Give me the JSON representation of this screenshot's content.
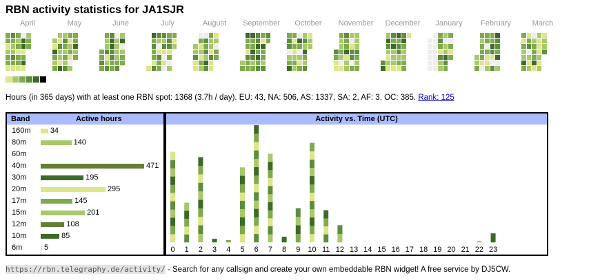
{
  "page": {
    "title": "RBN activity statistics for JA1SJR"
  },
  "calendar": {
    "months": [
      "April",
      "May",
      "June",
      "July",
      "August",
      "September",
      "October",
      "November",
      "December",
      "January",
      "February",
      "March"
    ],
    "legend_colors": [
      "#dde68a",
      "#a8c86a",
      "#7faa4f",
      "#5f8c3e",
      "#3d6a26",
      "#000000"
    ],
    "empty_color": "#eeeeee",
    "highlight_color": "#cc3333"
  },
  "summary": {
    "text": "Hours (in 365 days) with at least one RBN spot: 1368 (3.7h / day). EU: 43, NA: 506, AS: 1337, SA: 2, AF: 3, OC: 385.",
    "rank_label": "Rank: 125"
  },
  "bands": {
    "header_band": "Band",
    "header_hours": "Active hours",
    "rows": [
      {
        "band": "160m",
        "hours": 34,
        "color": "#dde68a"
      },
      {
        "band": "80m",
        "hours": 140,
        "color": "#a8c86a"
      },
      {
        "band": "60m",
        "hours": 0,
        "color": "#cccccc"
      },
      {
        "band": "40m",
        "hours": 471,
        "color": "#667f37"
      },
      {
        "band": "30m",
        "hours": 195,
        "color": "#3d6a26"
      },
      {
        "band": "20m",
        "hours": 295,
        "color": "#dde68a"
      },
      {
        "band": "17m",
        "hours": 145,
        "color": "#7faa4f"
      },
      {
        "band": "15m",
        "hours": 201,
        "color": "#a8c86a"
      },
      {
        "band": "12m",
        "hours": 108,
        "color": "#667f37"
      },
      {
        "band": "10m",
        "hours": 85,
        "color": "#3d6a26"
      },
      {
        "band": "6m",
        "hours": 5,
        "color": "#dde68a"
      }
    ]
  },
  "chart_data": {
    "type": "bar",
    "title": "Activity vs. Time (UTC)",
    "categories": [
      "0",
      "1",
      "2",
      "3",
      "4",
      "5",
      "6",
      "7",
      "8",
      "9",
      "10",
      "11",
      "12",
      "13",
      "14",
      "15",
      "16",
      "17",
      "18",
      "19",
      "20",
      "21",
      "22",
      "23"
    ],
    "values": [
      133,
      58,
      125,
      5,
      3,
      110,
      172,
      130,
      8,
      50,
      146,
      47,
      25,
      0,
      0,
      0,
      0,
      0,
      0,
      0,
      0,
      0,
      2,
      13
    ],
    "stack_colors": [
      "#dde68a",
      "#a8c86a",
      "#7faa4f",
      "#5f8c3e",
      "#3d6a26"
    ]
  },
  "footer": {
    "url": "https://rbn.telegraphy.de/activity/",
    "text": " - Search for any callsign and create your own embeddable RBN widget! A free service by DJ5CW."
  }
}
